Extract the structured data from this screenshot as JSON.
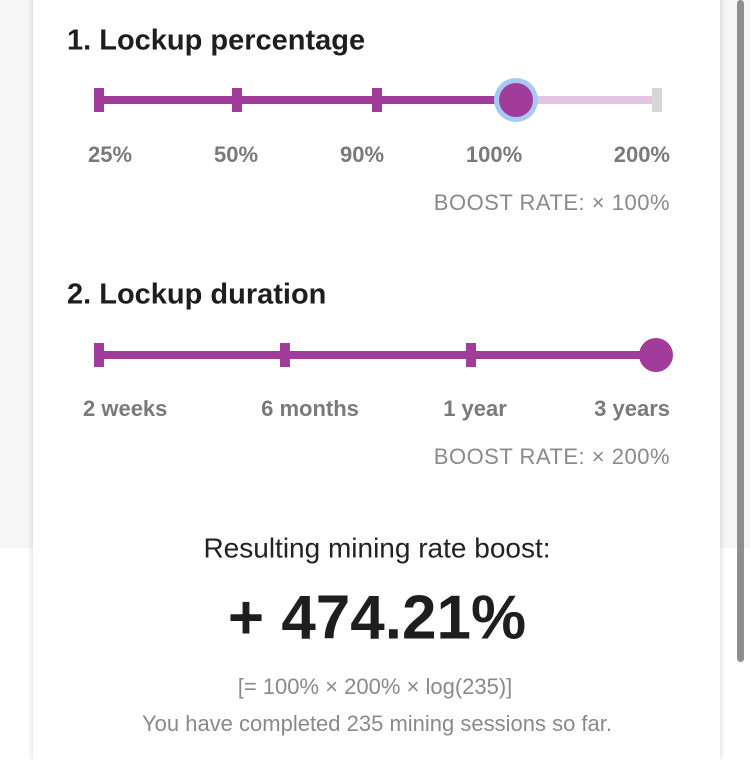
{
  "lockup_percentage": {
    "title": "1. Lockup percentage",
    "options": [
      "25%",
      "50%",
      "90%",
      "100%",
      "200%"
    ],
    "boost_rate": "BOOST RATE: × 100%"
  },
  "lockup_duration": {
    "title": "2. Lockup duration",
    "options": [
      "2 weeks",
      "6 months",
      "1 year",
      "3 years"
    ],
    "boost_rate": "BOOST RATE: × 200%"
  },
  "result": {
    "label": "Resulting mining rate boost:",
    "value": "+ 474.21%",
    "formula": "[= 100% × 200% × log(235)]",
    "note": "You have completed 235 mining sessions so far."
  }
}
